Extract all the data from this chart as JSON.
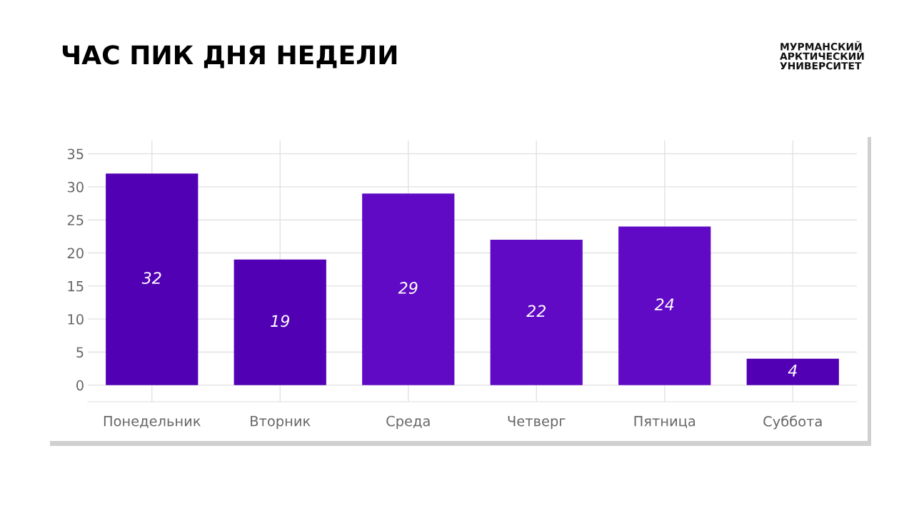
{
  "chart_data": {
    "type": "bar",
    "title": "ЧАС ПИК ДНЯ НЕДЕЛИ",
    "categories": [
      "Понедельник",
      "Вторник",
      "Среда",
      "Четверг",
      "Пятница",
      "Суббота"
    ],
    "values": [
      32,
      19,
      29,
      22,
      24,
      4
    ],
    "colors": [
      "#5200b4",
      "#5200b4",
      "#600ac6",
      "#600ac6",
      "#600ac6",
      "#5200b4"
    ],
    "ylim": [
      -2.5,
      37
    ],
    "yticks": [
      0,
      5,
      10,
      15,
      20,
      25,
      30,
      35
    ],
    "grid": true,
    "data_labels": true,
    "annotations": [
      "МУРМАНСКИЙ\nАРКТИЧЕСКИЙ\nУНИВЕРСИТЕТ"
    ]
  }
}
